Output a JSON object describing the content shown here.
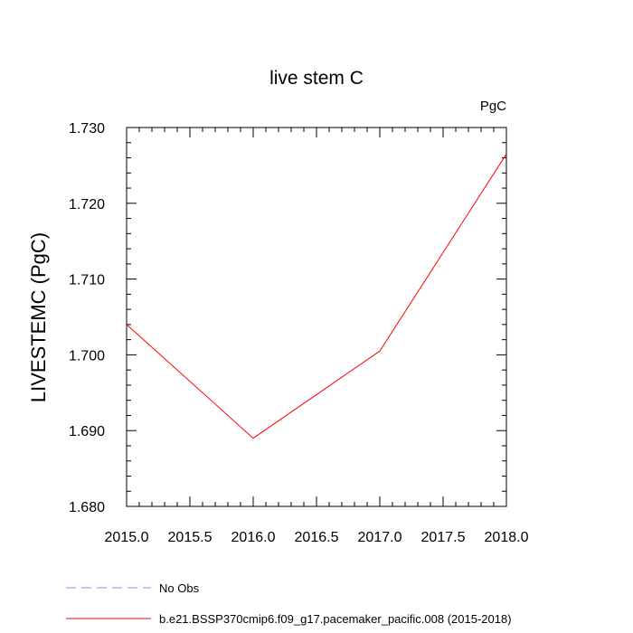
{
  "chart_data": {
    "type": "line",
    "title": "live stem C",
    "units_label": "PgC",
    "xlabel": "",
    "ylabel": "LIVESTEMC  (PgC)",
    "xlim": [
      2015.0,
      2018.0
    ],
    "ylim": [
      1.68,
      1.73
    ],
    "x_ticks": [
      "2015.0",
      "2015.5",
      "2016.0",
      "2016.5",
      "2017.0",
      "2017.5",
      "2018.0"
    ],
    "y_ticks": [
      "1.680",
      "1.690",
      "1.700",
      "1.710",
      "1.720",
      "1.730"
    ],
    "x": [
      2015,
      2016,
      2017,
      2018
    ],
    "series": [
      {
        "name": "b.e21.BSSP370cmip6.f09_g17.pacemaker_pacific.008 (2015-2018)",
        "color": "#ff0000",
        "dash": "solid",
        "values": [
          1.704,
          1.689,
          1.7005,
          1.7265
        ]
      }
    ],
    "legend": {
      "placement": "bottom-left",
      "entries": [
        {
          "label": "No Obs",
          "color": "#8a8aff",
          "dash": "dashed"
        },
        {
          "label": "b.e21.BSSP370cmip6.f09_g17.pacemaker_pacific.008 (2015-2018)",
          "color": "#ff0000",
          "dash": "solid"
        }
      ]
    },
    "grid": false
  }
}
